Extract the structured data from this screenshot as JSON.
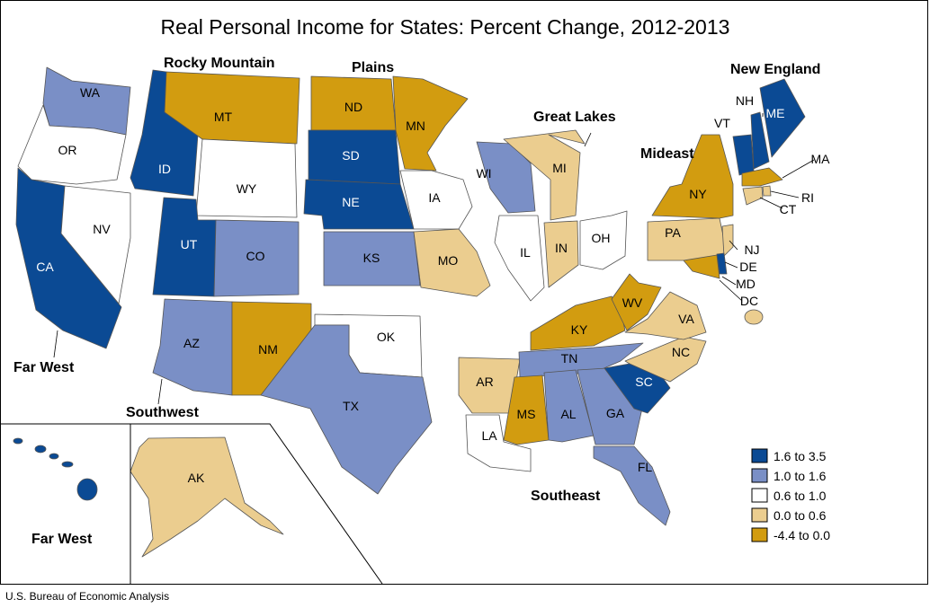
{
  "title": "Real Personal Income for States: Percent Change, 2012-2013",
  "credit": "U.S. Bureau of Economic Analysis",
  "legend": [
    {
      "label": "1.6 to 3.5",
      "color": "#0b4a94"
    },
    {
      "label": "1.0 to 1.6",
      "color": "#7a8fc6"
    },
    {
      "label": "0.6 to 1.0",
      "color": "#ffffff"
    },
    {
      "label": "0.0 to 0.6",
      "color": "#ebcd8f"
    },
    {
      "label": "-4.4 to 0.0",
      "color": "#d29c10"
    }
  ],
  "regions": [
    "Rocky Mountain",
    "Plains",
    "Great Lakes",
    "New England",
    "Mideast",
    "Far West",
    "Southwest",
    "Southeast",
    "Far West"
  ],
  "states": [
    {
      "abbr": "WA",
      "cls": 1
    },
    {
      "abbr": "OR",
      "cls": 2
    },
    {
      "abbr": "CA",
      "cls": 0
    },
    {
      "abbr": "NV",
      "cls": 2
    },
    {
      "abbr": "ID",
      "cls": 0
    },
    {
      "abbr": "MT",
      "cls": 4
    },
    {
      "abbr": "WY",
      "cls": 2
    },
    {
      "abbr": "UT",
      "cls": 0
    },
    {
      "abbr": "CO",
      "cls": 1
    },
    {
      "abbr": "AZ",
      "cls": 1
    },
    {
      "abbr": "NM",
      "cls": 4
    },
    {
      "abbr": "ND",
      "cls": 4
    },
    {
      "abbr": "SD",
      "cls": 0
    },
    {
      "abbr": "NE",
      "cls": 0
    },
    {
      "abbr": "KS",
      "cls": 1
    },
    {
      "abbr": "OK",
      "cls": 2
    },
    {
      "abbr": "TX",
      "cls": 1
    },
    {
      "abbr": "MN",
      "cls": 4
    },
    {
      "abbr": "IA",
      "cls": 2
    },
    {
      "abbr": "MO",
      "cls": 3
    },
    {
      "abbr": "AR",
      "cls": 3
    },
    {
      "abbr": "LA",
      "cls": 2
    },
    {
      "abbr": "WI",
      "cls": 1
    },
    {
      "abbr": "IL",
      "cls": 2
    },
    {
      "abbr": "MI",
      "cls": 3
    },
    {
      "abbr": "IN",
      "cls": 3
    },
    {
      "abbr": "OH",
      "cls": 2
    },
    {
      "abbr": "KY",
      "cls": 4
    },
    {
      "abbr": "TN",
      "cls": 1
    },
    {
      "abbr": "MS",
      "cls": 4
    },
    {
      "abbr": "AL",
      "cls": 1
    },
    {
      "abbr": "GA",
      "cls": 1
    },
    {
      "abbr": "FL",
      "cls": 1
    },
    {
      "abbr": "SC",
      "cls": 0
    },
    {
      "abbr": "NC",
      "cls": 3
    },
    {
      "abbr": "VA",
      "cls": 3
    },
    {
      "abbr": "WV",
      "cls": 4
    },
    {
      "abbr": "PA",
      "cls": 3
    },
    {
      "abbr": "NY",
      "cls": 4
    },
    {
      "abbr": "NJ",
      "cls": 3
    },
    {
      "abbr": "DE",
      "cls": 0
    },
    {
      "abbr": "MD",
      "cls": 4
    },
    {
      "abbr": "DC",
      "cls": 3
    },
    {
      "abbr": "VT",
      "cls": 0
    },
    {
      "abbr": "NH",
      "cls": 0
    },
    {
      "abbr": "ME",
      "cls": 0
    },
    {
      "abbr": "MA",
      "cls": 4
    },
    {
      "abbr": "RI",
      "cls": 3
    },
    {
      "abbr": "CT",
      "cls": 3
    },
    {
      "abbr": "AK",
      "cls": 3
    },
    {
      "abbr": "HI",
      "cls": 0
    }
  ]
}
